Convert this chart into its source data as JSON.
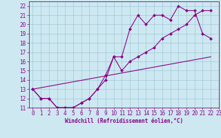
{
  "xlabel": "Windchill (Refroidissement éolien,°C)",
  "bg_color": "#cde8f0",
  "grid_color": "#a0c8d8",
  "line_color": "#880088",
  "xlim": [
    -0.5,
    23
  ],
  "ylim": [
    11,
    22.5
  ],
  "xticks": [
    0,
    1,
    2,
    3,
    4,
    5,
    6,
    7,
    8,
    9,
    10,
    11,
    12,
    13,
    14,
    15,
    16,
    17,
    18,
    19,
    20,
    21,
    22,
    23
  ],
  "yticks": [
    11,
    12,
    13,
    14,
    15,
    16,
    17,
    18,
    19,
    20,
    21,
    22
  ],
  "line1_x": [
    0,
    1,
    2,
    3,
    4,
    5,
    6,
    7,
    8,
    9,
    10,
    11,
    12,
    13,
    14,
    15,
    16,
    17,
    18,
    19,
    20,
    21,
    22
  ],
  "line1_y": [
    13,
    12,
    12,
    11,
    11,
    11,
    11.5,
    12,
    13,
    14,
    16.5,
    16.5,
    19.5,
    21,
    20,
    21,
    21,
    20.5,
    22,
    21.5,
    21.5,
    19,
    18.5
  ],
  "line2_x": [
    0,
    1,
    2,
    3,
    4,
    5,
    6,
    7,
    8,
    9,
    10,
    11,
    12,
    13,
    14,
    15,
    16,
    17,
    18,
    19,
    20,
    21,
    22
  ],
  "line2_y": [
    13,
    12,
    12,
    11,
    11,
    11,
    11.5,
    12,
    13,
    14.5,
    16.5,
    15,
    16,
    16.5,
    17,
    17.5,
    18.5,
    19,
    19.5,
    20,
    21,
    21.5,
    21.5
  ],
  "line3_x": [
    0,
    22
  ],
  "line3_y": [
    13,
    16.5
  ],
  "marker_size": 2.5,
  "font_size": 5.5,
  "label_font_size": 5.5
}
